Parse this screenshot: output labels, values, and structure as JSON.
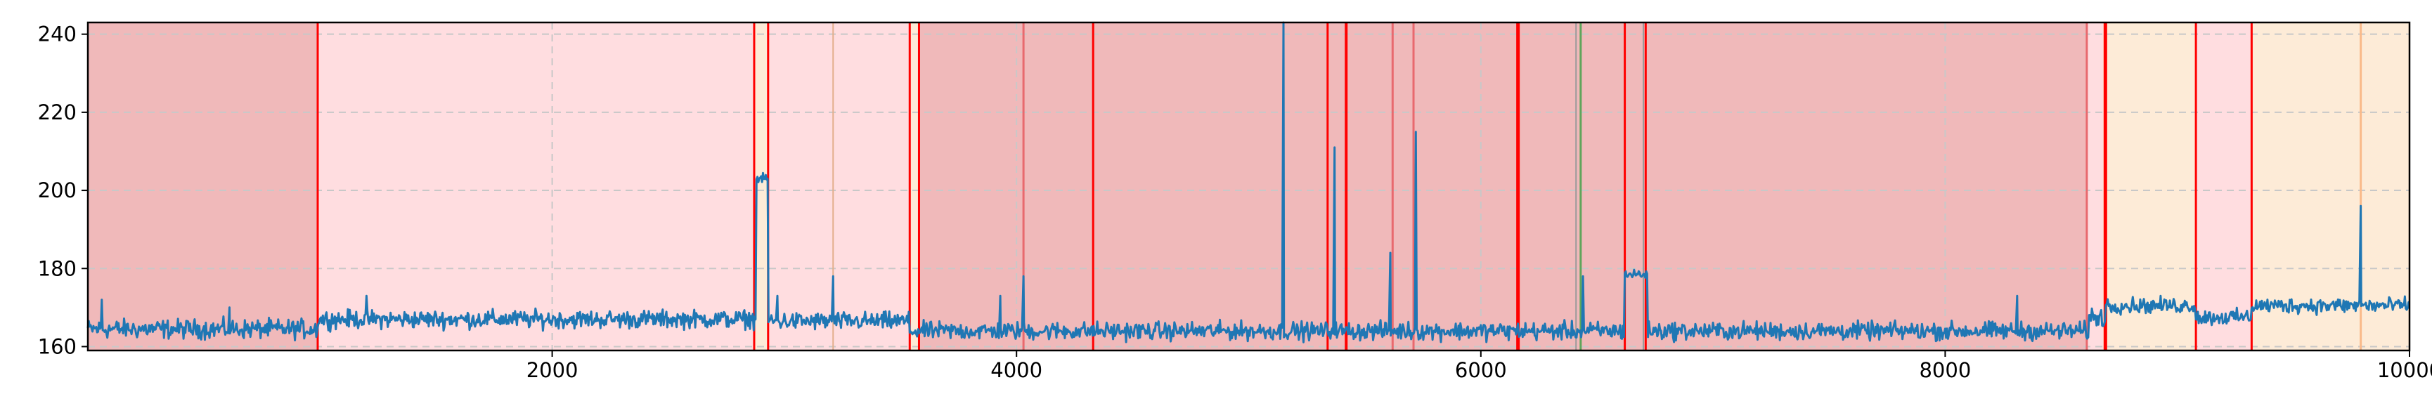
{
  "chart_data": {
    "type": "line",
    "title": "",
    "xlabel": "",
    "ylabel": "",
    "xlim": [
      0,
      10000
    ],
    "ylim": [
      159,
      243
    ],
    "x_ticks": [
      2000,
      4000,
      6000,
      8000,
      10000
    ],
    "y_ticks": [
      160,
      180,
      200,
      220,
      240
    ],
    "grid": true,
    "legend": "none",
    "colors": {
      "series": "#1f77b4",
      "region_red": "#f0b9ba",
      "region_pink": "#ffdde0",
      "region_orange": "#fdebd7",
      "boundary_red": "#ff0000",
      "line_pink": "#e8696e",
      "line_tan": "#e3ae8c",
      "line_orange": "#f9b98a",
      "line_green": "#5fa55a",
      "line_gray": "#9a9a9a"
    },
    "regions": [
      {
        "x0": 0,
        "x1": 990,
        "color": "region_red"
      },
      {
        "x0": 990,
        "x1": 2870,
        "color": "region_pink"
      },
      {
        "x0": 2870,
        "x1": 2930,
        "color": "region_orange"
      },
      {
        "x0": 2930,
        "x1": 3540,
        "color": "region_pink"
      },
      {
        "x0": 3540,
        "x1": 3580,
        "color": "region_orange"
      },
      {
        "x0": 3580,
        "x1": 8610,
        "color": "region_red"
      },
      {
        "x0": 8610,
        "x1": 8680,
        "color": "region_pink"
      },
      {
        "x0": 8680,
        "x1": 9080,
        "color": "region_orange"
      },
      {
        "x0": 9080,
        "x1": 9320,
        "color": "region_pink"
      },
      {
        "x0": 9320,
        "x1": 10000,
        "color": "region_orange"
      }
    ],
    "vlines": [
      {
        "x": 990,
        "color": "boundary_red",
        "w": 3
      },
      {
        "x": 2870,
        "color": "boundary_red",
        "w": 3
      },
      {
        "x": 2930,
        "color": "boundary_red",
        "w": 3
      },
      {
        "x": 3210,
        "color": "line_tan",
        "w": 2
      },
      {
        "x": 3540,
        "color": "boundary_red",
        "w": 3
      },
      {
        "x": 3580,
        "color": "boundary_red",
        "w": 3
      },
      {
        "x": 4030,
        "color": "line_pink",
        "w": 3
      },
      {
        "x": 4330,
        "color": "boundary_red",
        "w": 3
      },
      {
        "x": 5340,
        "color": "boundary_red",
        "w": 3
      },
      {
        "x": 5420,
        "color": "boundary_red",
        "w": 4
      },
      {
        "x": 5620,
        "color": "line_pink",
        "w": 3
      },
      {
        "x": 5710,
        "color": "line_pink",
        "w": 3
      },
      {
        "x": 6160,
        "color": "boundary_red",
        "w": 5
      },
      {
        "x": 6410,
        "color": "line_gray",
        "w": 2
      },
      {
        "x": 6430,
        "color": "line_green",
        "w": 3
      },
      {
        "x": 6620,
        "color": "boundary_red",
        "w": 3
      },
      {
        "x": 6700,
        "color": "line_gray",
        "w": 2
      },
      {
        "x": 6710,
        "color": "boundary_red",
        "w": 3
      },
      {
        "x": 8610,
        "color": "line_pink",
        "w": 3
      },
      {
        "x": 8690,
        "color": "boundary_red",
        "w": 5
      },
      {
        "x": 9080,
        "color": "boundary_red",
        "w": 3
      },
      {
        "x": 9320,
        "color": "boundary_red",
        "w": 3
      },
      {
        "x": 9790,
        "color": "line_orange",
        "w": 3
      }
    ],
    "series": [
      {
        "segments": [
          {
            "x0": 0,
            "x1": 990,
            "level": 164.5,
            "noise": 3.2
          },
          {
            "x0": 990,
            "x1": 2880,
            "level": 167.0,
            "noise": 3.0
          },
          {
            "x0": 2880,
            "x1": 2930,
            "level": 203.0,
            "noise": 1.5
          },
          {
            "x0": 2930,
            "x1": 3540,
            "level": 166.5,
            "noise": 3.0
          },
          {
            "x0": 3540,
            "x1": 6620,
            "level": 164.0,
            "noise": 3.0
          },
          {
            "x0": 6620,
            "x1": 6720,
            "level": 178.5,
            "noise": 1.8
          },
          {
            "x0": 6720,
            "x1": 8620,
            "level": 164.0,
            "noise": 3.0
          },
          {
            "x0": 8620,
            "x1": 8690,
            "level": 167.5,
            "noise": 3.5
          },
          {
            "x0": 8690,
            "x1": 9080,
            "level": 170.5,
            "noise": 2.6
          },
          {
            "x0": 9080,
            "x1": 9320,
            "level": 167.5,
            "noise": 2.6
          },
          {
            "x0": 9320,
            "x1": 10000,
            "level": 170.5,
            "noise": 2.6
          }
        ],
        "spikes": [
          {
            "x": 60,
            "y": 172
          },
          {
            "x": 610,
            "y": 170
          },
          {
            "x": 1200,
            "y": 173
          },
          {
            "x": 2970,
            "y": 173
          },
          {
            "x": 3210,
            "y": 178
          },
          {
            "x": 3930,
            "y": 173
          },
          {
            "x": 4030,
            "y": 178
          },
          {
            "x": 5150,
            "y": 243
          },
          {
            "x": 5370,
            "y": 211
          },
          {
            "x": 5610,
            "y": 184
          },
          {
            "x": 5720,
            "y": 215
          },
          {
            "x": 6440,
            "y": 178
          },
          {
            "x": 8310,
            "y": 173
          },
          {
            "x": 9790,
            "y": 196
          }
        ]
      }
    ]
  }
}
